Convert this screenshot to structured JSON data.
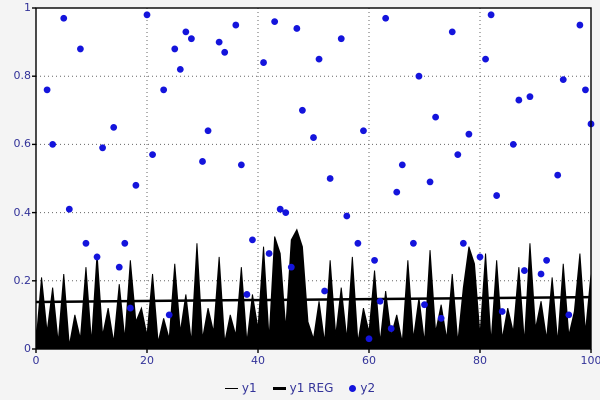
{
  "colors": {
    "page_bg": "#f4f4f4",
    "plot_bg": "#ffffff",
    "axis": "#000000",
    "grid": "#666666",
    "label": "#333399",
    "series": "#000000",
    "scatter": "#1414dc"
  },
  "legend": {
    "items": [
      {
        "label": "y1",
        "swatch": "thin-line"
      },
      {
        "label": "y1 REG",
        "swatch": "thick-line"
      },
      {
        "label": "y2",
        "swatch": "dot"
      }
    ]
  },
  "chart_data": {
    "type": "mixed",
    "title": "",
    "xlabel": "",
    "ylabel": "",
    "xlim": [
      0,
      100
    ],
    "ylim": [
      0,
      1
    ],
    "xticks": [
      0,
      20,
      40,
      60,
      80,
      100
    ],
    "xtick_labels": [
      "0",
      "20",
      "40",
      "60",
      "80",
      "100"
    ],
    "yticks": [
      0,
      0.2,
      0.4,
      0.6,
      0.8,
      1
    ],
    "ytick_labels": [
      "0",
      "0.2",
      "0.4",
      "0.6",
      "0.8",
      "1"
    ],
    "grid": "dotted",
    "legend_position": "bottom",
    "series": [
      {
        "name": "y1",
        "type": "area",
        "color": "#000000",
        "x_start": 0,
        "x_step": 1,
        "values": [
          0.02,
          0.21,
          0.05,
          0.18,
          0.02,
          0.22,
          0.01,
          0.1,
          0.03,
          0.24,
          0.02,
          0.28,
          0.04,
          0.12,
          0.02,
          0.19,
          0.03,
          0.26,
          0.08,
          0.12,
          0.04,
          0.22,
          0.02,
          0.09,
          0.03,
          0.25,
          0.05,
          0.16,
          0.02,
          0.31,
          0.03,
          0.12,
          0.05,
          0.27,
          0.02,
          0.1,
          0.04,
          0.24,
          0.02,
          0.16,
          0.06,
          0.3,
          0.03,
          0.33,
          0.28,
          0.06,
          0.32,
          0.35,
          0.3,
          0.08,
          0.03,
          0.14,
          0.02,
          0.26,
          0.04,
          0.18,
          0.03,
          0.27,
          0.02,
          0.12,
          0.05,
          0.23,
          0.02,
          0.17,
          0.04,
          0.1,
          0.02,
          0.26,
          0.03,
          0.15,
          0.02,
          0.29,
          0.05,
          0.13,
          0.03,
          0.22,
          0.02,
          0.18,
          0.3,
          0.25,
          0.04,
          0.28,
          0.02,
          0.26,
          0.03,
          0.12,
          0.05,
          0.24,
          0.02,
          0.31,
          0.06,
          0.14,
          0.03,
          0.21,
          0.02,
          0.25,
          0.04,
          0.11,
          0.28,
          0.05,
          0.22
        ]
      },
      {
        "name": "y1 REG",
        "type": "line",
        "color": "#000000",
        "width": 2.5,
        "x": [
          0,
          100
        ],
        "values": [
          0.138,
          0.152
        ]
      },
      {
        "name": "y2",
        "type": "scatter",
        "color": "#1414dc",
        "points": [
          [
            2,
            0.76
          ],
          [
            3,
            0.6
          ],
          [
            5,
            0.97
          ],
          [
            6,
            0.41
          ],
          [
            8,
            0.88
          ],
          [
            9,
            0.31
          ],
          [
            11,
            0.27
          ],
          [
            12,
            0.59
          ],
          [
            14,
            0.65
          ],
          [
            15,
            0.24
          ],
          [
            16,
            0.31
          ],
          [
            17,
            0.12
          ],
          [
            18,
            0.48
          ],
          [
            20,
            0.98
          ],
          [
            21,
            0.57
          ],
          [
            23,
            0.76
          ],
          [
            24,
            0.1
          ],
          [
            25,
            0.88
          ],
          [
            26,
            0.82
          ],
          [
            27,
            0.93
          ],
          [
            28,
            0.91
          ],
          [
            30,
            0.55
          ],
          [
            31,
            0.64
          ],
          [
            33,
            0.9
          ],
          [
            34,
            0.87
          ],
          [
            36,
            0.95
          ],
          [
            37,
            0.54
          ],
          [
            38,
            0.16
          ],
          [
            39,
            0.32
          ],
          [
            41,
            0.84
          ],
          [
            42,
            0.28
          ],
          [
            43,
            0.96
          ],
          [
            44,
            0.41
          ],
          [
            45,
            0.4
          ],
          [
            46,
            0.24
          ],
          [
            47,
            0.94
          ],
          [
            48,
            0.7
          ],
          [
            50,
            0.62
          ],
          [
            51,
            0.85
          ],
          [
            52,
            0.17
          ],
          [
            53,
            0.5
          ],
          [
            55,
            0.91
          ],
          [
            56,
            0.39
          ],
          [
            58,
            0.31
          ],
          [
            59,
            0.64
          ],
          [
            60,
            0.03
          ],
          [
            61,
            0.26
          ],
          [
            62,
            0.14
          ],
          [
            63,
            0.97
          ],
          [
            64,
            0.06
          ],
          [
            65,
            0.46
          ],
          [
            66,
            0.54
          ],
          [
            68,
            0.31
          ],
          [
            69,
            0.8
          ],
          [
            70,
            0.13
          ],
          [
            71,
            0.49
          ],
          [
            72,
            0.68
          ],
          [
            73,
            0.09
          ],
          [
            75,
            0.93
          ],
          [
            76,
            0.57
          ],
          [
            77,
            0.31
          ],
          [
            78,
            0.63
          ],
          [
            80,
            0.27
          ],
          [
            81,
            0.85
          ],
          [
            82,
            0.98
          ],
          [
            83,
            0.45
          ],
          [
            84,
            0.11
          ],
          [
            86,
            0.6
          ],
          [
            87,
            0.73
          ],
          [
            88,
            0.23
          ],
          [
            89,
            0.74
          ],
          [
            91,
            0.22
          ],
          [
            92,
            0.26
          ],
          [
            94,
            0.51
          ],
          [
            95,
            0.79
          ],
          [
            96,
            0.1
          ],
          [
            98,
            0.95
          ],
          [
            99,
            0.76
          ],
          [
            100,
            0.66
          ]
        ]
      }
    ]
  }
}
